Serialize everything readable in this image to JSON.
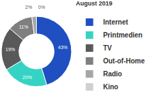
{
  "chart_data": {
    "type": "pie",
    "title": "August 2019",
    "categories": [
      "Internet",
      "Printmedien",
      "TV",
      "Out-of-Home",
      "Radio",
      "Kino"
    ],
    "values": [
      43,
      20,
      19,
      11,
      2,
      0
    ],
    "value_labels": [
      "43%",
      "20%",
      "19%",
      "11%",
      "2%",
      "0%"
    ],
    "colors": [
      "#1f4fc1",
      "#35d3c3",
      "#595959",
      "#7f7f7f",
      "#a6a6a6",
      "#d0d0d0"
    ],
    "legend": "right",
    "data_labels": true
  }
}
